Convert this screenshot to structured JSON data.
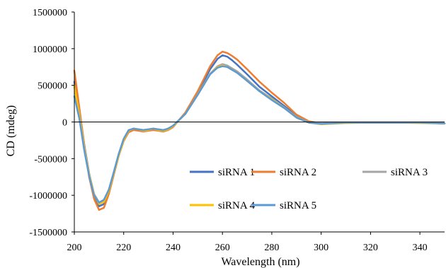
{
  "chart_data": {
    "type": "line",
    "title": "",
    "xlabel": "Wavelength (nm)",
    "ylabel": "CD (mdeg)",
    "xlim": [
      200,
      350
    ],
    "ylim": [
      -1500000,
      1500000
    ],
    "x_ticks": [
      200,
      220,
      240,
      260,
      280,
      300,
      320,
      340
    ],
    "y_ticks": [
      -1500000,
      -1000000,
      -500000,
      0,
      500000,
      1000000,
      1500000
    ],
    "x_tick_labels": [
      "200",
      "220",
      "240",
      "260",
      "280",
      "300",
      "320",
      "340"
    ],
    "y_tick_labels": [
      "-1500000",
      "-1000000",
      "-500000",
      "0",
      "500000",
      "1000000",
      "1500000"
    ],
    "grid": false,
    "legend_position": "bottom-right",
    "series": [
      {
        "name": "siRNA 1",
        "color": "#4472C4",
        "x": [
          200,
          202,
          204,
          206,
          208,
          210,
          212,
          214,
          216,
          218,
          220,
          222,
          224,
          226,
          228,
          230,
          232,
          234,
          236,
          238,
          240,
          245,
          250,
          255,
          258,
          260,
          262,
          264,
          266,
          270,
          275,
          280,
          285,
          290,
          295,
          300,
          310,
          320,
          330,
          340,
          350
        ],
        "y": [
          550000,
          150000,
          -300000,
          -700000,
          -1000000,
          -1150000,
          -1120000,
          -950000,
          -700000,
          -450000,
          -250000,
          -130000,
          -100000,
          -110000,
          -120000,
          -110000,
          -100000,
          -110000,
          -120000,
          -100000,
          -60000,
          120000,
          400000,
          720000,
          860000,
          910000,
          890000,
          840000,
          780000,
          650000,
          480000,
          350000,
          220000,
          80000,
          0,
          -20000,
          -10000,
          -10000,
          -10000,
          -10000,
          -20000
        ]
      },
      {
        "name": "siRNA 2",
        "color": "#ED7D31",
        "x": [
          200,
          202,
          204,
          206,
          208,
          210,
          212,
          214,
          216,
          218,
          220,
          222,
          224,
          226,
          228,
          230,
          232,
          234,
          236,
          238,
          240,
          245,
          250,
          255,
          258,
          260,
          262,
          264,
          266,
          270,
          275,
          280,
          285,
          290,
          295,
          300,
          310,
          320,
          330,
          340,
          350
        ],
        "y": [
          700000,
          200000,
          -300000,
          -750000,
          -1050000,
          -1200000,
          -1170000,
          -980000,
          -720000,
          -460000,
          -260000,
          -140000,
          -110000,
          -120000,
          -130000,
          -120000,
          -110000,
          -120000,
          -130000,
          -110000,
          -70000,
          130000,
          420000,
          760000,
          910000,
          960000,
          940000,
          900000,
          850000,
          720000,
          550000,
          400000,
          260000,
          100000,
          10000,
          -20000,
          -10000,
          -10000,
          -10000,
          -10000,
          -20000
        ]
      },
      {
        "name": "siRNA 3",
        "color": "#A5A5A5",
        "x": [
          200,
          202,
          204,
          206,
          208,
          210,
          212,
          214,
          216,
          218,
          220,
          222,
          224,
          226,
          228,
          230,
          232,
          234,
          236,
          238,
          240,
          245,
          250,
          255,
          258,
          260,
          262,
          264,
          266,
          270,
          275,
          280,
          285,
          290,
          295,
          300,
          310,
          320,
          330,
          340,
          350
        ],
        "y": [
          480000,
          120000,
          -320000,
          -700000,
          -980000,
          -1100000,
          -1080000,
          -930000,
          -690000,
          -440000,
          -240000,
          -120000,
          -90000,
          -100000,
          -110000,
          -100000,
          -90000,
          -100000,
          -110000,
          -90000,
          -50000,
          110000,
          380000,
          660000,
          760000,
          790000,
          770000,
          730000,
          690000,
          580000,
          430000,
          320000,
          200000,
          70000,
          -5000,
          -20000,
          -10000,
          -10000,
          -10000,
          -10000,
          -20000
        ]
      },
      {
        "name": "siRNA 4",
        "color": "#FFC000",
        "x": [
          200,
          202,
          204,
          206,
          208,
          210,
          212,
          214,
          216,
          218,
          220,
          222,
          224,
          226,
          228,
          230,
          232,
          234,
          236,
          238,
          240,
          245,
          250,
          255,
          258,
          260,
          262,
          264,
          266,
          270,
          275,
          280,
          285,
          290,
          295,
          300,
          310,
          320,
          330,
          340,
          350
        ],
        "y": [
          500000,
          100000,
          -350000,
          -720000,
          -990000,
          -1120000,
          -1090000,
          -940000,
          -700000,
          -450000,
          -250000,
          -120000,
          -90000,
          -100000,
          -120000,
          -110000,
          -90000,
          -110000,
          -120000,
          -100000,
          -60000,
          110000,
          370000,
          650000,
          750000,
          770000,
          750000,
          710000,
          670000,
          560000,
          420000,
          310000,
          190000,
          60000,
          -10000,
          -30000,
          -15000,
          -10000,
          -10000,
          -15000,
          -20000
        ]
      },
      {
        "name": "siRNA 5",
        "color": "#5B9BD5",
        "x": [
          200,
          202,
          204,
          206,
          208,
          210,
          212,
          214,
          216,
          218,
          220,
          222,
          224,
          226,
          228,
          230,
          232,
          234,
          236,
          238,
          240,
          245,
          250,
          255,
          258,
          260,
          262,
          264,
          266,
          270,
          275,
          280,
          285,
          290,
          295,
          300,
          310,
          320,
          330,
          340,
          350
        ],
        "y": [
          350000,
          50000,
          -380000,
          -740000,
          -1000000,
          -1100000,
          -1060000,
          -920000,
          -680000,
          -430000,
          -230000,
          -110000,
          -90000,
          -100000,
          -110000,
          -100000,
          -90000,
          -100000,
          -110000,
          -90000,
          -50000,
          110000,
          370000,
          650000,
          740000,
          760000,
          750000,
          710000,
          670000,
          560000,
          420000,
          300000,
          190000,
          60000,
          -10000,
          -25000,
          -10000,
          -10000,
          -10000,
          -10000,
          -20000
        ]
      }
    ]
  }
}
